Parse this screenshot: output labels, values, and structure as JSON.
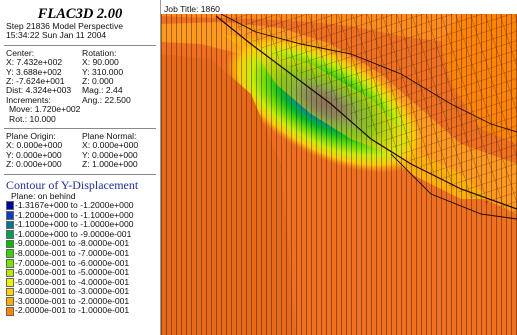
{
  "app": {
    "title": "FLAC3D 2.00"
  },
  "step": {
    "line1": "Step 21836  Model Perspective",
    "line2": "15:34:22 Sun Jan 11 2004"
  },
  "view": {
    "center_label": "Center:",
    "rotation_label": "Rotation:",
    "center_x": "X: 7.432e+002",
    "center_y": "Y: 3.688e+002",
    "center_z": "Z: -7.624e+001",
    "rot_x": "X:  90.000",
    "rot_y": "Y:  310.000",
    "rot_z": "Z:   0.000",
    "dist": "Dist: 4.324e+003",
    "mag": "Mag.:     2.44",
    "increments_label": "Increments:",
    "ang": "Ang.: 22.500",
    "move": "Move: 1.720e+002",
    "rot": "Rot.:  10.000"
  },
  "plane": {
    "origin_label": "Plane Origin:",
    "normal_label": "Plane Normal:",
    "origin_x": "X: 0.000e+000",
    "origin_y": "Y: 0.000e+000",
    "origin_z": "Z: 0.000e+000",
    "normal_x": "X: 0.000e+000",
    "normal_y": "Y: 0.000e+000",
    "normal_z": "Z: 1.000e+000"
  },
  "contour": {
    "title": "Contour of Y-Displacement",
    "plane_mode": "Plane: on behind",
    "legend": [
      {
        "label": "-1.3167e+000 to -1.2000e+000",
        "color": "#0000a8"
      },
      {
        "label": "-1.2000e+000 to -1.1000e+000",
        "color": "#0a3cc8"
      },
      {
        "label": "-1.1000e+000 to -1.0000e+000",
        "color": "#007a8a"
      },
      {
        "label": "-1.0000e+000 to -9.0000e-001",
        "color": "#00a050"
      },
      {
        "label": "-9.0000e-001 to -8.0000e-001",
        "color": "#00c000"
      },
      {
        "label": "-8.0000e-001 to -7.0000e-001",
        "color": "#3cd200"
      },
      {
        "label": "-7.0000e-001 to -6.0000e-001",
        "color": "#7ce000"
      },
      {
        "label": "-6.0000e-001 to -5.0000e-001",
        "color": "#b4ec00"
      },
      {
        "label": "-5.0000e-001 to -4.0000e-001",
        "color": "#ecf400"
      },
      {
        "label": "-4.0000e-001 to -3.0000e-001",
        "color": "#ffd200"
      },
      {
        "label": "-3.0000e-001 to -2.0000e-001",
        "color": "#ffaa00"
      },
      {
        "label": "-2.0000e-001 to -1.0000e-001",
        "color": "#ff8400"
      }
    ]
  },
  "viewport": {
    "job_title": "Job Title: 1860"
  },
  "colors": {
    "band_orange": "#f07020",
    "band_orange_light": "#ff8c1a",
    "band_amber": "#ffb000",
    "band_yellow": "#ffd200",
    "mesh_line": "#2a1400"
  }
}
